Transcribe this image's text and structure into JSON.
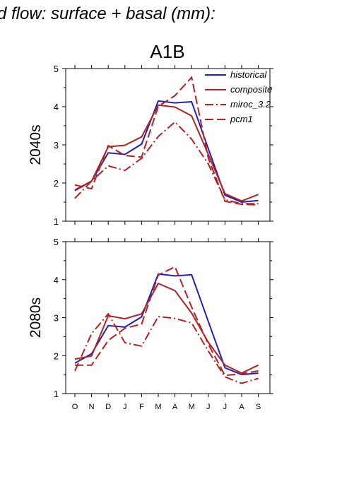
{
  "figure": {
    "title": "d flow: surface + basal (mm):",
    "subtitle": "A1B"
  },
  "chart_data": [
    {
      "type": "line",
      "ylabel": "2040s",
      "xlabel": "",
      "categories": [
        "O",
        "N",
        "D",
        "J",
        "F",
        "M",
        "A",
        "M",
        "J",
        "J",
        "A",
        "S"
      ],
      "ylim": [
        1,
        5
      ],
      "yticks": [
        1,
        2,
        3,
        4,
        5
      ],
      "legend_position": "top-right",
      "series": [
        {
          "name": "historical",
          "color": "#1f1fbf",
          "dash": "solid",
          "values": [
            1.8,
            2.05,
            2.79,
            2.75,
            3.02,
            4.15,
            4.1,
            4.13,
            2.9,
            1.68,
            1.5,
            1.54
          ]
        },
        {
          "name": "composite",
          "color": "#b22222",
          "dash": "solid",
          "values": [
            1.82,
            2.05,
            2.95,
            2.99,
            3.21,
            4.04,
            3.99,
            3.76,
            2.75,
            1.72,
            1.53,
            1.7
          ]
        },
        {
          "name": "miroc_3.2",
          "color": "#b22222",
          "dash": "dashdot",
          "values": [
            1.6,
            2.05,
            2.45,
            2.33,
            2.65,
            3.22,
            3.6,
            3.15,
            2.5,
            1.56,
            1.46,
            1.46
          ]
        },
        {
          "name": "pcm1",
          "color": "#b22222",
          "dash": "dashed",
          "values": [
            1.95,
            1.85,
            2.98,
            2.72,
            2.68,
            4.01,
            4.29,
            4.77,
            2.65,
            1.52,
            1.44,
            1.43
          ]
        }
      ]
    },
    {
      "type": "line",
      "ylabel": "2080s",
      "xlabel": "",
      "categories": [
        "O",
        "N",
        "D",
        "J",
        "F",
        "M",
        "A",
        "M",
        "J",
        "J",
        "A",
        "S"
      ],
      "ylim": [
        1,
        5
      ],
      "yticks": [
        1,
        2,
        3,
        4,
        5
      ],
      "series": [
        {
          "name": "historical",
          "color": "#1f1fbf",
          "dash": "solid",
          "values": [
            1.8,
            2.05,
            2.79,
            2.75,
            3.02,
            4.15,
            4.1,
            4.13,
            2.9,
            1.68,
            1.5,
            1.54
          ]
        },
        {
          "name": "composite",
          "color": "#b22222",
          "dash": "solid",
          "values": [
            1.91,
            1.99,
            3.05,
            2.97,
            3.1,
            3.9,
            3.71,
            3.12,
            2.35,
            1.75,
            1.54,
            1.75
          ]
        },
        {
          "name": "miroc_3.2",
          "color": "#b22222",
          "dash": "dashdot",
          "values": [
            1.6,
            2.58,
            3.1,
            2.34,
            2.25,
            3.03,
            2.98,
            2.86,
            2.12,
            1.44,
            1.27,
            1.4
          ]
        },
        {
          "name": "pcm1",
          "color": "#b22222",
          "dash": "dashed",
          "values": [
            1.75,
            1.75,
            2.4,
            2.72,
            2.83,
            4.12,
            4.34,
            3.28,
            2.3,
            1.48,
            1.52,
            1.6
          ]
        }
      ]
    }
  ]
}
